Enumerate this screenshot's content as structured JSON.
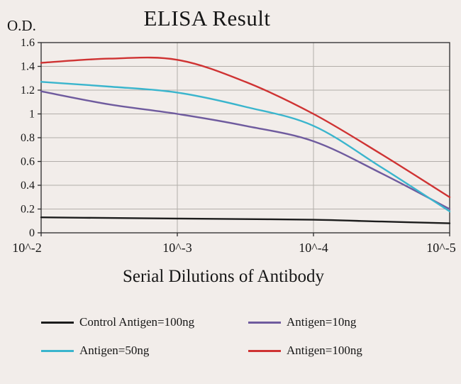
{
  "style": {
    "background": "#f2edea",
    "grid_color": "#b3aeaa",
    "axis_color": "#2b2b2b",
    "text_color": "#161616"
  },
  "chart_data": {
    "type": "line",
    "title": "ELISA Result",
    "ylabel": "O.D.",
    "xlabel": "Serial Dilutions of Antibody",
    "x_log10": [
      -2,
      -2.5,
      -3,
      -3.5,
      -4,
      -4.5,
      -5
    ],
    "x_tick_values": [
      -2,
      -3,
      -4,
      -5
    ],
    "x_tick_labels": [
      "10^-2",
      "10^-3",
      "10^-4",
      "10^-5"
    ],
    "y_ticks": [
      0,
      0.2,
      0.4,
      0.6,
      0.8,
      1,
      1.2,
      1.4,
      1.6
    ],
    "ylim": [
      0,
      1.6
    ],
    "grid": true,
    "legend_position": "bottom",
    "series": [
      {
        "name": "Control Antigen=100ng",
        "color": "#1c1c1c",
        "values": [
          0.13,
          0.125,
          0.12,
          0.115,
          0.11,
          0.095,
          0.08
        ]
      },
      {
        "name": "Antigen=10ng",
        "color": "#6f5b9e",
        "values": [
          1.19,
          1.08,
          1.0,
          0.9,
          0.77,
          0.5,
          0.2
        ]
      },
      {
        "name": "Antigen=50ng",
        "color": "#3ab5cd",
        "values": [
          1.27,
          1.23,
          1.18,
          1.06,
          0.9,
          0.55,
          0.18
        ]
      },
      {
        "name": "Antigen=100ng",
        "color": "#cf3333",
        "values": [
          1.43,
          1.465,
          1.455,
          1.27,
          1.0,
          0.66,
          0.3
        ]
      }
    ]
  }
}
